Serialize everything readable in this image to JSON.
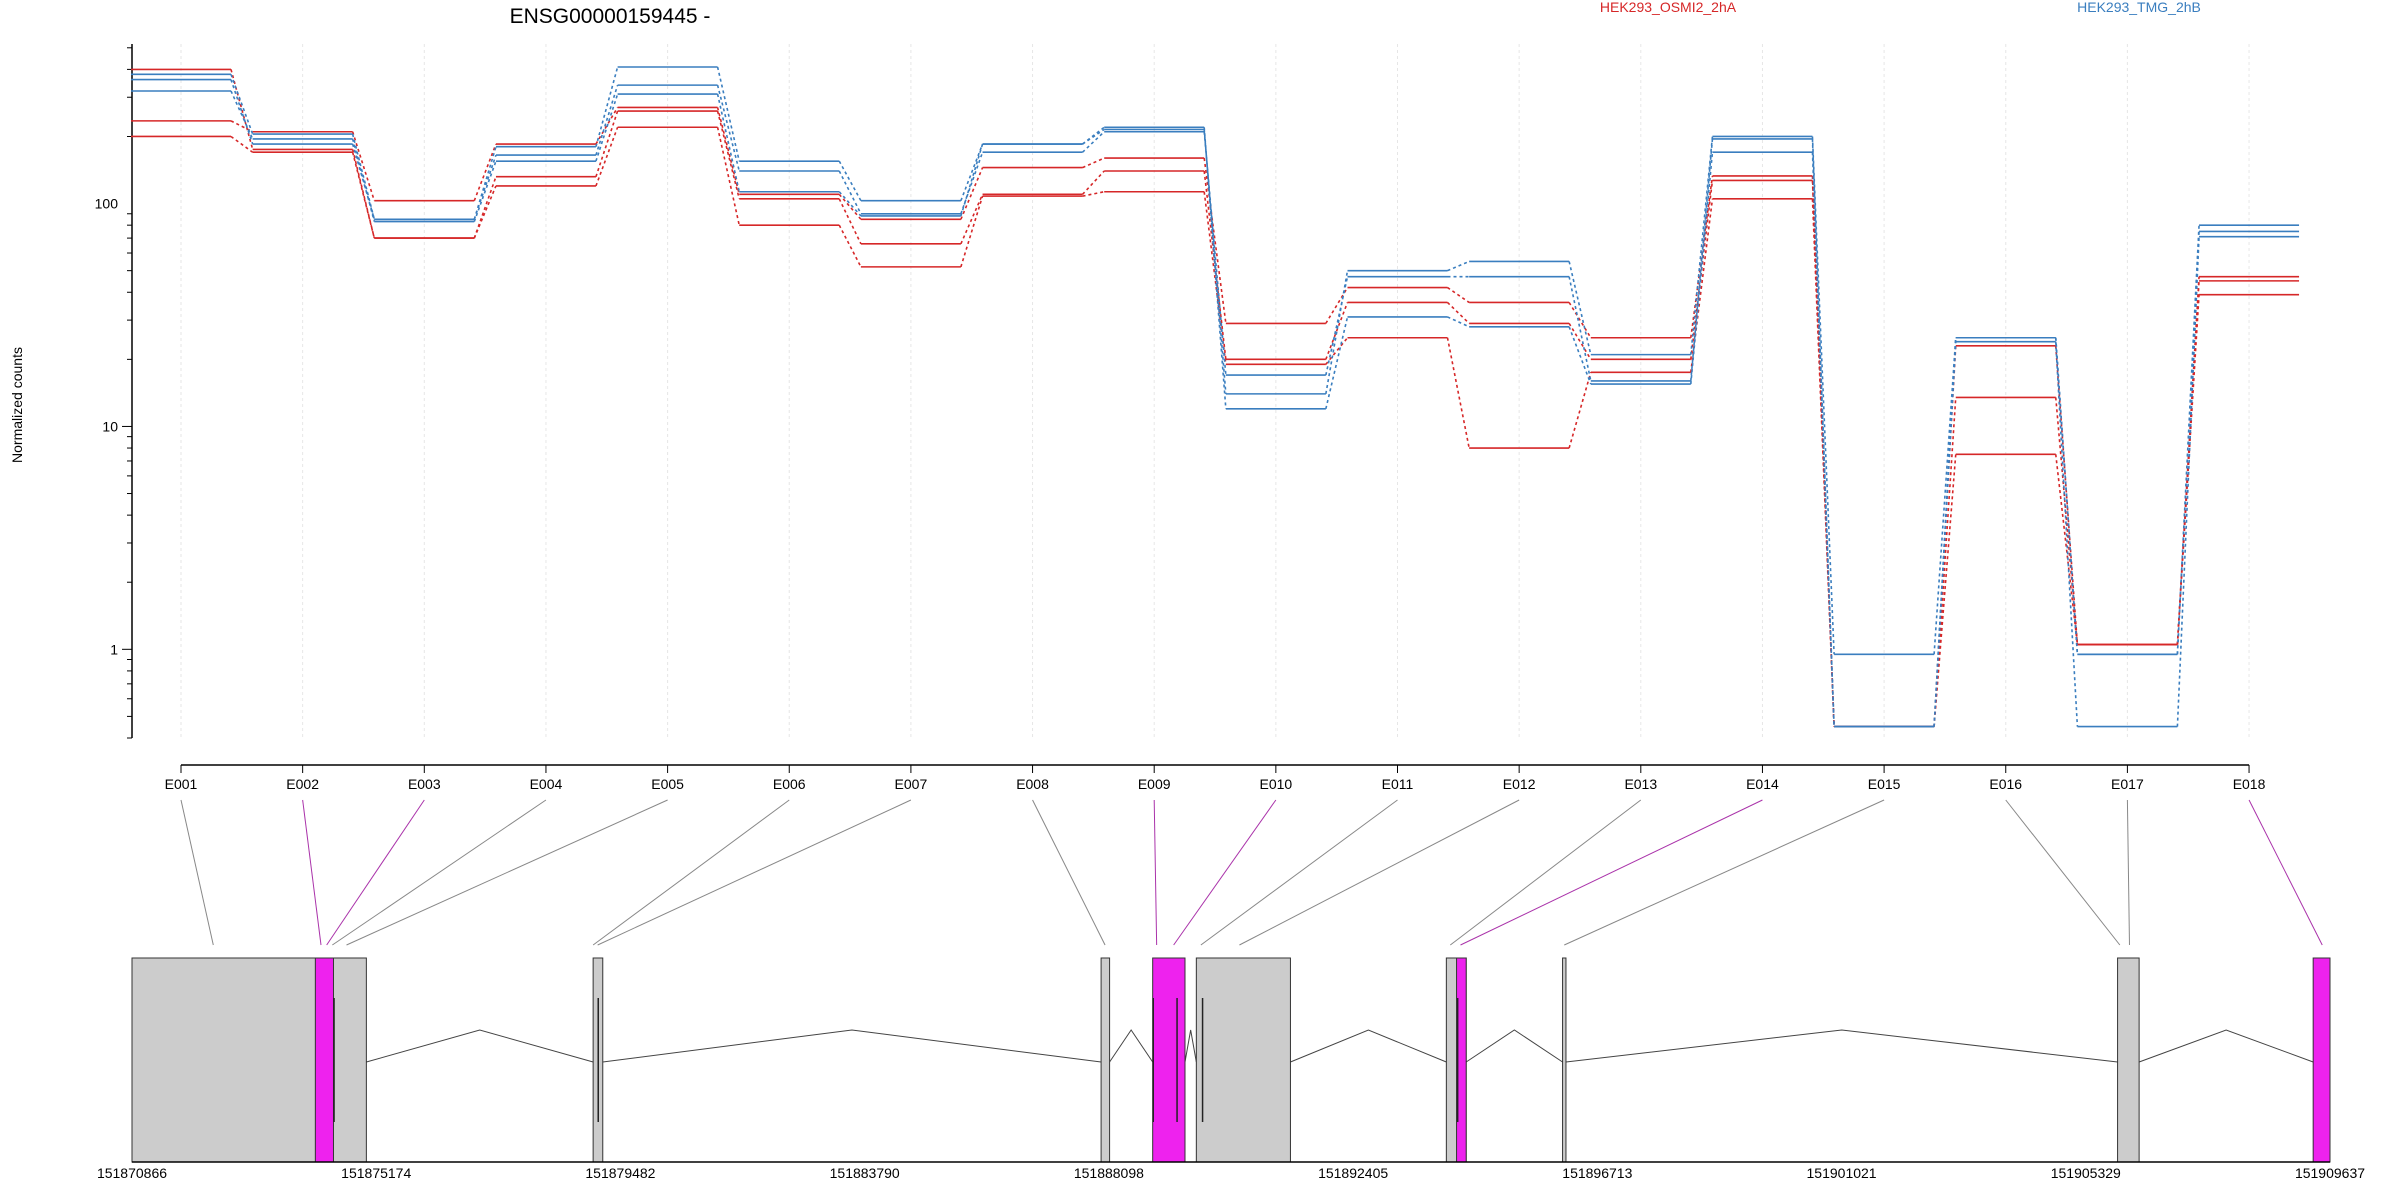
{
  "chart_data": {
    "type": "line",
    "title": "ENSG00000159445 -",
    "ylabel": "Normalized counts",
    "yscale": "log",
    "ylim": [
      0.4,
      520
    ],
    "yticks": [
      1,
      10,
      100
    ],
    "categories": [
      "E001",
      "E002",
      "E003",
      "E004",
      "E005",
      "E006",
      "E007",
      "E008",
      "E009",
      "E010",
      "E011",
      "E012",
      "E013",
      "E014",
      "E015",
      "E016",
      "E017",
      "E018"
    ],
    "legend": [
      {
        "name": "HEK293_OSMI2_2hA",
        "color": "#d62728"
      },
      {
        "name": "HEK293_TMG_2hB",
        "color": "#3a7ebf"
      }
    ],
    "series": [
      {
        "group": "HEK293_OSMI2_2hA",
        "color": "#d62728",
        "values": [
          235,
          210,
          103,
          185,
          270,
          110,
          85,
          145,
          160,
          29,
          42,
          36,
          25,
          133,
          0.45,
          23,
          1.05,
          47
        ]
      },
      {
        "group": "HEK293_OSMI2_2hA",
        "color": "#d62728",
        "values": [
          400,
          175,
          70,
          132,
          260,
          105,
          66,
          110,
          140,
          20,
          36,
          29,
          20,
          127,
          0.45,
          13.5,
          1.05,
          45
        ]
      },
      {
        "group": "HEK293_OSMI2_2hA",
        "color": "#d62728",
        "values": [
          200,
          170,
          70,
          120,
          220,
          80,
          52,
          108,
          113,
          19,
          25,
          8,
          17.5,
          105,
          0.45,
          7.5,
          1.05,
          39
        ]
      },
      {
        "group": "HEK293_TMG_2hB",
        "color": "#3a7ebf",
        "values": [
          380,
          205,
          85,
          180,
          410,
          155,
          103,
          185,
          215,
          14,
          50,
          55,
          21,
          200,
          0.95,
          25,
          0.95,
          80
        ]
      },
      {
        "group": "HEK293_TMG_2hB",
        "color": "#3a7ebf",
        "values": [
          360,
          185,
          85,
          165,
          340,
          140,
          90,
          170,
          210,
          17,
          47,
          47,
          16,
          195,
          0.45,
          25,
          0.95,
          75
        ]
      },
      {
        "group": "HEK293_TMG_2hB",
        "color": "#3a7ebf",
        "values": [
          320,
          195,
          83,
          155,
          310,
          113,
          88,
          185,
          220,
          12,
          31,
          28,
          15.5,
          170,
          0.45,
          24,
          0.45,
          71
        ]
      }
    ],
    "genome_axis_labels": [
      "151870866",
      "151875174",
      "151879482",
      "151883790",
      "151888098",
      "151892405",
      "151896713",
      "151901021",
      "151905329",
      "151909637"
    ],
    "gene_model": {
      "strand": "-",
      "genome_start": 151870866,
      "genome_end": 151909637,
      "exon_blocks": [
        {
          "start": 151870866,
          "end": 151875000,
          "color": "#cccccc"
        },
        {
          "start": 151874100,
          "end": 151874420,
          "color": "#ee22ee"
        },
        {
          "start": 151879000,
          "end": 151879170,
          "color": "#cccccc"
        },
        {
          "start": 151887960,
          "end": 151888110,
          "color": "#cccccc"
        },
        {
          "start": 151888870,
          "end": 151889440,
          "color": "#ee22ee"
        },
        {
          "start": 151889640,
          "end": 151891300,
          "color": "#cccccc"
        },
        {
          "start": 151894050,
          "end": 151894400,
          "color": "#cccccc"
        },
        {
          "start": 151894230,
          "end": 151894400,
          "color": "#ee22ee"
        },
        {
          "start": 151896100,
          "end": 151896160,
          "color": "#cccccc"
        },
        {
          "start": 151905890,
          "end": 151906270,
          "color": "#cccccc"
        },
        {
          "start": 151909340,
          "end": 151909637,
          "color": "#ee22ee"
        }
      ],
      "introns": [
        [
          151875000,
          151879000
        ],
        [
          151879170,
          151887960
        ],
        [
          151888110,
          151888870
        ],
        [
          151889440,
          151889640
        ],
        [
          151891300,
          151894050
        ],
        [
          151894400,
          151896100
        ],
        [
          151896160,
          151905890
        ],
        [
          151906270,
          151909340
        ]
      ],
      "exon_links": [
        {
          "label": "E001",
          "genome": 151872300,
          "color": "#888888"
        },
        {
          "label": "E002",
          "genome": 151874200,
          "color": "#aa33aa"
        },
        {
          "label": "E003",
          "genome": 151874300,
          "color": "#aa33aa"
        },
        {
          "label": "E004",
          "genome": 151874400,
          "color": "#888888"
        },
        {
          "label": "E005",
          "genome": 151874650,
          "color": "#888888"
        },
        {
          "label": "E006",
          "genome": 151879000,
          "color": "#888888"
        },
        {
          "label": "E007",
          "genome": 151879080,
          "color": "#888888"
        },
        {
          "label": "E008",
          "genome": 151888030,
          "color": "#888888"
        },
        {
          "label": "E009",
          "genome": 151888940,
          "color": "#aa33aa"
        },
        {
          "label": "E010",
          "genome": 151889240,
          "color": "#aa33aa"
        },
        {
          "label": "E011",
          "genome": 151889720,
          "color": "#888888"
        },
        {
          "label": "E012",
          "genome": 151890400,
          "color": "#888888"
        },
        {
          "label": "E013",
          "genome": 151894120,
          "color": "#888888"
        },
        {
          "label": "E014",
          "genome": 151894300,
          "color": "#aa33aa"
        },
        {
          "label": "E015",
          "genome": 151896130,
          "color": "#888888"
        },
        {
          "label": "E016",
          "genome": 151905930,
          "color": "#888888"
        },
        {
          "label": "E017",
          "genome": 151906100,
          "color": "#888888"
        },
        {
          "label": "E018",
          "genome": 151909500,
          "color": "#aa33aa"
        }
      ]
    }
  }
}
